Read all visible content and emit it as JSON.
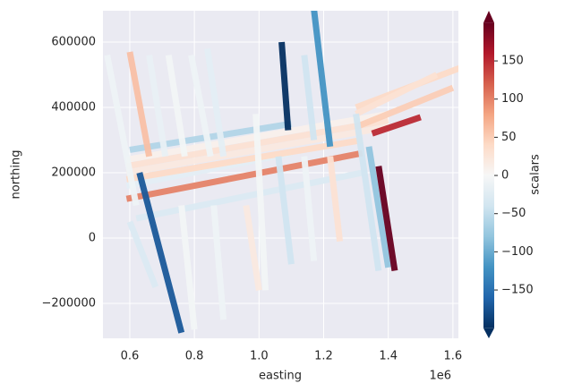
{
  "chart_data": {
    "type": "scatter",
    "xlabel": "easting",
    "ylabel": "northing",
    "x_offset_label": "1e6",
    "colorbar_label": "scalars",
    "xlim": [
      0.517,
      1.617
    ],
    "xticks": [
      0.6,
      0.8,
      {
        "value": 1,
        "label": "1.0"
      },
      1.2,
      1.4,
      1.6
    ],
    "ylim": [
      -307000,
      696000
    ],
    "yticks": [
      {
        "value": -200000,
        "label": "−200000"
      },
      0,
      200000,
      400000,
      600000
    ],
    "clim": [
      -200,
      200
    ],
    "cticks": [
      {
        "value": -150,
        "label": "−150"
      },
      {
        "value": -100,
        "label": "−100"
      },
      {
        "value": -50,
        "label": "−50"
      },
      0,
      50,
      100,
      150
    ],
    "cmap": [
      "#053061",
      "#2166ac",
      "#4393c3",
      "#92c5de",
      "#d1e5f0",
      "#f7f7f7",
      "#fddbc7",
      "#f4a582",
      "#d6604d",
      "#b2182b",
      "#67001f"
    ],
    "background": "#eaeaf2",
    "tracks": [
      {
        "x": [
          0.59,
          1.4
        ],
        "y": [
          200000,
          340000
        ],
        "c": 20
      },
      {
        "x": [
          0.59,
          1.4
        ],
        "y": [
          220000,
          360000
        ],
        "c": 30
      },
      {
        "x": [
          0.59,
          1.32
        ],
        "y": [
          120000,
          260000
        ],
        "c": 100
      },
      {
        "x": [
          0.59,
          1.1
        ],
        "y": [
          160000,
          260000
        ],
        "c": -20
      },
      {
        "x": [
          0.6,
          1.1
        ],
        "y": [
          270000,
          350000
        ],
        "c": -60
      },
      {
        "x": [
          0.59,
          1.32
        ],
        "y": [
          180000,
          300000
        ],
        "c": 40
      },
      {
        "x": [
          0.59,
          1.4
        ],
        "y": [
          240000,
          380000
        ],
        "c": 10
      },
      {
        "x": [
          0.62,
          1.32
        ],
        "y": [
          60000,
          200000
        ],
        "c": -30
      },
      {
        "x": [
          1.3,
          1.62
        ],
        "y": [
          400000,
          520000
        ],
        "c": 40
      },
      {
        "x": [
          1.3,
          1.6
        ],
        "y": [
          340000,
          460000
        ],
        "c": 50
      },
      {
        "x": [
          1.3,
          1.55
        ],
        "y": [
          380000,
          500000
        ],
        "c": 30
      },
      {
        "x": [
          1.35,
          1.5
        ],
        "y": [
          320000,
          370000
        ],
        "c": 150
      },
      {
        "x": [
          0.53,
          0.62
        ],
        "y": [
          560000,
          100000
        ],
        "c": -10
      },
      {
        "x": [
          0.6,
          0.66
        ],
        "y": [
          570000,
          250000
        ],
        "c": 60
      },
      {
        "x": [
          0.63,
          0.76
        ],
        "y": [
          200000,
          -290000
        ],
        "c": -170
      },
      {
        "x": [
          0.66,
          0.71
        ],
        "y": [
          560000,
          250000
        ],
        "c": -15
      },
      {
        "x": [
          0.72,
          0.77
        ],
        "y": [
          560000,
          250000
        ],
        "c": -5
      },
      {
        "x": [
          0.79,
          0.85
        ],
        "y": [
          560000,
          250000
        ],
        "c": -10
      },
      {
        "x": [
          0.84,
          0.89
        ],
        "y": [
          580000,
          250000
        ],
        "c": -20
      },
      {
        "x": [
          0.6,
          0.68
        ],
        "y": [
          50000,
          -150000
        ],
        "c": -30
      },
      {
        "x": [
          0.76,
          0.8
        ],
        "y": [
          100000,
          -280000
        ],
        "c": -5
      },
      {
        "x": [
          0.86,
          0.89
        ],
        "y": [
          100000,
          -250000
        ],
        "c": -10
      },
      {
        "x": [
          0.96,
          1.0
        ],
        "y": [
          100000,
          -160000
        ],
        "c": 20
      },
      {
        "x": [
          1.07,
          1.09
        ],
        "y": [
          600000,
          330000
        ],
        "c": -200
      },
      {
        "x": [
          1.17,
          1.22
        ],
        "y": [
          700000,
          280000
        ],
        "c": -120
      },
      {
        "x": [
          1.14,
          1.17
        ],
        "y": [
          560000,
          300000
        ],
        "c": -40
      },
      {
        "x": [
          0.99,
          1.02
        ],
        "y": [
          380000,
          -160000
        ],
        "c": -5
      },
      {
        "x": [
          1.06,
          1.1
        ],
        "y": [
          250000,
          -80000
        ],
        "c": -40
      },
      {
        "x": [
          1.14,
          1.17
        ],
        "y": [
          250000,
          -70000
        ],
        "c": -10
      },
      {
        "x": [
          1.22,
          1.25
        ],
        "y": [
          250000,
          -10000
        ],
        "c": 30
      },
      {
        "x": [
          1.3,
          1.37
        ],
        "y": [
          380000,
          -100000
        ],
        "c": -40
      },
      {
        "x": [
          1.34,
          1.4
        ],
        "y": [
          280000,
          -90000
        ],
        "c": -80
      },
      {
        "x": [
          1.37,
          1.42
        ],
        "y": [
          220000,
          -100000
        ],
        "c": 200
      }
    ]
  }
}
